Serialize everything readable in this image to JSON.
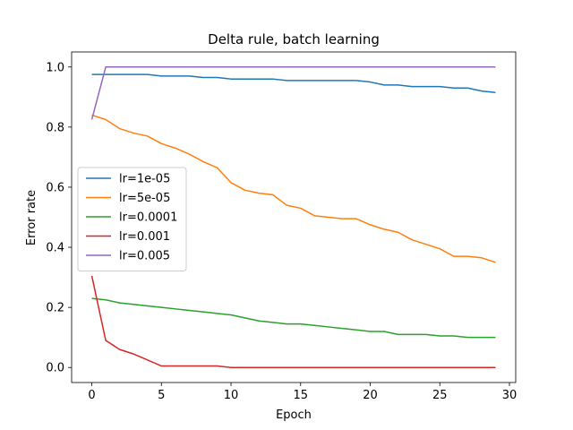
{
  "chart_data": {
    "type": "line",
    "title": "Delta rule, batch learning",
    "xlabel": "Epoch",
    "ylabel": "Error rate",
    "xlim": [
      -1.45,
      30.45
    ],
    "ylim": [
      -0.05,
      1.05
    ],
    "xticks": [
      0,
      5,
      10,
      15,
      20,
      25,
      30
    ],
    "yticks": [
      0.0,
      0.2,
      0.4,
      0.6,
      0.8,
      1.0
    ],
    "xtick_labels": [
      "0",
      "5",
      "10",
      "15",
      "20",
      "25",
      "30"
    ],
    "ytick_labels": [
      "0.0",
      "0.2",
      "0.4",
      "0.6",
      "0.8",
      "1.0"
    ],
    "grid": false,
    "legend_position": "center-left",
    "x": [
      0,
      1,
      2,
      3,
      4,
      5,
      6,
      7,
      8,
      9,
      10,
      11,
      12,
      13,
      14,
      15,
      16,
      17,
      18,
      19,
      20,
      21,
      22,
      23,
      24,
      25,
      26,
      27,
      28,
      29
    ],
    "series": [
      {
        "name": "lr=1e-05",
        "color": "#1f77b4",
        "values": [
          0.975,
          0.975,
          0.975,
          0.975,
          0.975,
          0.97,
          0.97,
          0.97,
          0.965,
          0.965,
          0.96,
          0.96,
          0.96,
          0.96,
          0.955,
          0.955,
          0.955,
          0.955,
          0.955,
          0.955,
          0.95,
          0.94,
          0.94,
          0.935,
          0.935,
          0.935,
          0.93,
          0.93,
          0.92,
          0.915
        ]
      },
      {
        "name": "lr=5e-05",
        "color": "#ff7f0e",
        "values": [
          0.84,
          0.825,
          0.795,
          0.78,
          0.77,
          0.745,
          0.73,
          0.71,
          0.685,
          0.665,
          0.615,
          0.59,
          0.58,
          0.575,
          0.54,
          0.53,
          0.505,
          0.5,
          0.495,
          0.495,
          0.475,
          0.46,
          0.45,
          0.425,
          0.41,
          0.395,
          0.37,
          0.37,
          0.365,
          0.35
        ]
      },
      {
        "name": "lr=0.0001",
        "color": "#2ca02c",
        "values": [
          0.23,
          0.225,
          0.215,
          0.21,
          0.205,
          0.2,
          0.195,
          0.19,
          0.185,
          0.18,
          0.175,
          0.165,
          0.155,
          0.15,
          0.145,
          0.145,
          0.14,
          0.135,
          0.13,
          0.125,
          0.12,
          0.12,
          0.11,
          0.11,
          0.11,
          0.105,
          0.105,
          0.1,
          0.1,
          0.1
        ]
      },
      {
        "name": "lr=0.001",
        "color": "#d62728",
        "values": [
          0.305,
          0.09,
          0.06,
          0.045,
          0.025,
          0.005,
          0.005,
          0.005,
          0.005,
          0.005,
          0.0,
          0.0,
          0.0,
          0.0,
          0.0,
          0.0,
          0.0,
          0.0,
          0.0,
          0.0,
          0.0,
          0.0,
          0.0,
          0.0,
          0.0,
          0.0,
          0.0,
          0.0,
          0.0,
          0.0
        ]
      },
      {
        "name": "lr=0.005",
        "color": "#9467bd",
        "values": [
          0.825,
          1.0,
          1.0,
          1.0,
          1.0,
          1.0,
          1.0,
          1.0,
          1.0,
          1.0,
          1.0,
          1.0,
          1.0,
          1.0,
          1.0,
          1.0,
          1.0,
          1.0,
          1.0,
          1.0,
          1.0,
          1.0,
          1.0,
          1.0,
          1.0,
          1.0,
          1.0,
          1.0,
          1.0,
          1.0
        ]
      }
    ]
  }
}
